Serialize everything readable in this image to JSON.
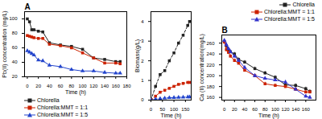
{
  "chart_data": [
    {
      "type": "line",
      "title": "A",
      "xlabel": "Time (h)",
      "ylabel": "Pb(II) concentration (mg/L)",
      "x": [
        0,
        4,
        8,
        12,
        20,
        28,
        40,
        60,
        80,
        100,
        120,
        140,
        160,
        168
      ],
      "series": [
        {
          "name": "Chlorella",
          "color": "#222222",
          "marker": "square",
          "line_style": "solid",
          "values": [
            100,
            96,
            85,
            85,
            83,
            82,
            67,
            64,
            62,
            58,
            46,
            44,
            41,
            41
          ]
        },
        {
          "name": "Chlorella:MMT = 1:1",
          "color": "#cc2200",
          "marker": "square",
          "line_style": "solid",
          "values": [
            77,
            76,
            75,
            74,
            73,
            73,
            65,
            63,
            60,
            53,
            46,
            39,
            39,
            38
          ]
        },
        {
          "name": "Chlorella:MMT = 1:5",
          "color": "#2244cc",
          "marker": "triangle",
          "line_style": "solid",
          "values": [
            56,
            54,
            52,
            50,
            43,
            42,
            36,
            34,
            30,
            28,
            28,
            26,
            25,
            25
          ]
        }
      ],
      "xlim": [
        -5,
        180
      ],
      "ylim": [
        20,
        110
      ],
      "xticks": [
        0,
        20,
        40,
        60,
        80,
        100,
        120,
        140,
        160,
        180
      ],
      "yticks": [
        20,
        40,
        60,
        80,
        100
      ],
      "grid": false,
      "legend": "lower left"
    },
    {
      "type": "line",
      "xlabel": "Time (h)",
      "ylabel": "Biomass(g/L)",
      "x": [
        0,
        20,
        40,
        60,
        80,
        100,
        120,
        140,
        160,
        168
      ],
      "series": [
        {
          "name": "Chlorella",
          "color": "#222222",
          "marker": "square",
          "line_style": "dashed",
          "values": [
            0,
            0.7,
            1.3,
            1.5,
            2.0,
            2.4,
            2.9,
            3.3,
            3.8,
            4.0
          ]
        },
        {
          "name": "Chlorella:MMT = 1:1",
          "color": "#cc2200",
          "marker": "square",
          "line_style": "dashed",
          "values": [
            0,
            0.2,
            0.4,
            0.5,
            0.6,
            0.7,
            0.8,
            0.85,
            0.9,
            0.9
          ]
        },
        {
          "name": "Chlorella:MMT = 1:5",
          "color": "#2244cc",
          "marker": "triangle",
          "line_style": "dashed",
          "values": [
            0,
            0.05,
            0.08,
            0.1,
            0.12,
            0.13,
            0.14,
            0.15,
            0.16,
            0.16
          ]
        }
      ],
      "xlim": [
        0,
        175
      ],
      "ylim": [
        0,
        4.5
      ],
      "xticks": [
        0,
        50,
        100,
        150
      ],
      "yticks": [
        0,
        1,
        2,
        3,
        4
      ],
      "grid": false
    },
    {
      "type": "line",
      "title": "B",
      "xlabel": "Time (h)",
      "ylabel": "Ca (II) concentration(mg/L)",
      "x": [
        0,
        4,
        8,
        12,
        20,
        28,
        40,
        60,
        80,
        100,
        120,
        140,
        160,
        168
      ],
      "series": [
        {
          "name": "Chlorella",
          "color": "#222222",
          "marker": "square",
          "line_style": "solid",
          "values": [
            263,
            255,
            248,
            244,
            240,
            230,
            225,
            213,
            205,
            197,
            183,
            182,
            176,
            171
          ],
          "errors": [
            3,
            4,
            3,
            3,
            3,
            3,
            3,
            3,
            3,
            3,
            3,
            3,
            3,
            3
          ]
        },
        {
          "name": "Chlorella:MMT = 1:1",
          "color": "#cc2200",
          "marker": "square",
          "line_style": "solid",
          "values": [
            262,
            248,
            243,
            236,
            228,
            223,
            210,
            200,
            185,
            182,
            180,
            175,
            170,
            170
          ],
          "errors": [
            3,
            4,
            3,
            3,
            3,
            3,
            3,
            3,
            3,
            3,
            3,
            3,
            3,
            3
          ]
        },
        {
          "name": "Chlorella:MMT = 1:5",
          "color": "#3333cc",
          "marker": "triangle",
          "line_style": "solid",
          "values": [
            265,
            257,
            250,
            244,
            236,
            228,
            215,
            200,
            195,
            192,
            188,
            175,
            162,
            160
          ],
          "errors": [
            3,
            4,
            3,
            3,
            3,
            3,
            3,
            3,
            3,
            3,
            3,
            3,
            3,
            3
          ]
        }
      ],
      "xlim": [
        -5,
        180
      ],
      "ylim": [
        155,
        275
      ],
      "xticks": [
        0,
        20,
        40,
        60,
        80,
        100,
        120,
        140,
        160
      ],
      "yticks": [
        160,
        180,
        200,
        220,
        240,
        260
      ],
      "grid": false,
      "legend": "upper right"
    }
  ]
}
